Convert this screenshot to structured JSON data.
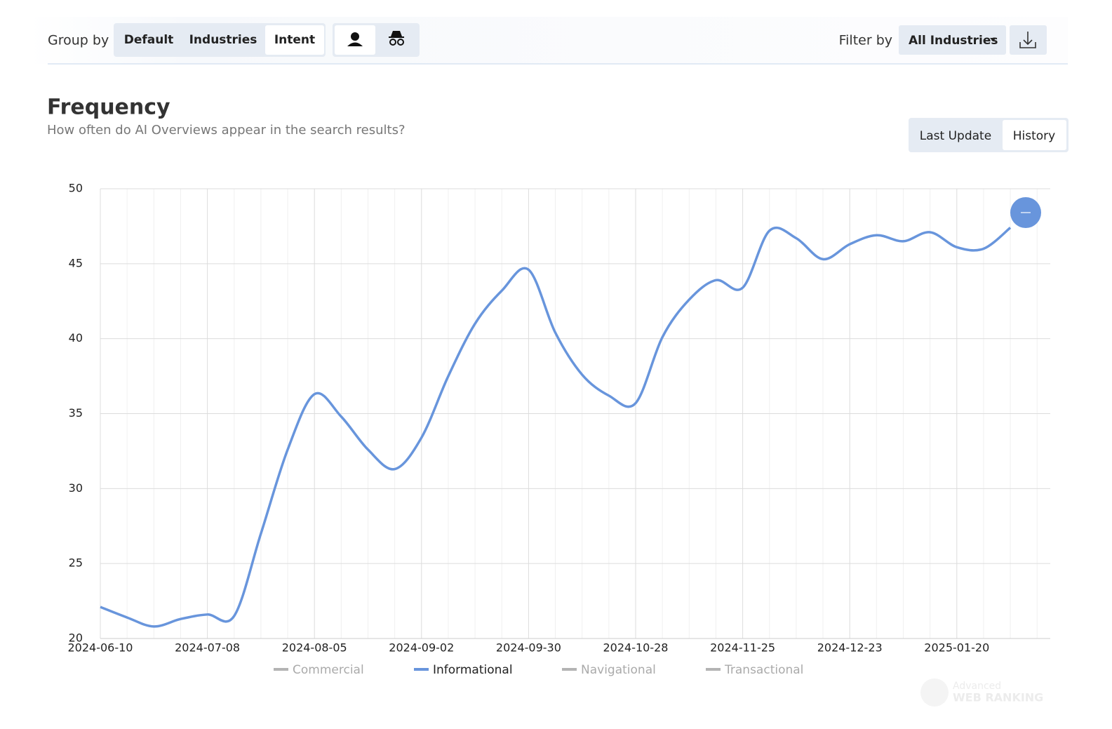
{
  "toolbar": {
    "group_label": "Group by",
    "group_options": [
      "Default",
      "Industries",
      "Intent"
    ],
    "filter_label": "Filter by",
    "filter_value": "All Industries"
  },
  "section": {
    "title": "Frequency",
    "subtitle": "How often do AI Overviews appear in the search results?",
    "view_options": [
      "Last Update",
      "History"
    ]
  },
  "chart_data": {
    "type": "line",
    "categories": [
      "2024-06-10",
      null,
      null,
      null,
      "2024-07-08",
      null,
      null,
      null,
      "2024-08-05",
      null,
      null,
      null,
      "2024-09-02",
      null,
      null,
      null,
      "2024-09-30",
      null,
      null,
      null,
      "2024-10-28",
      null,
      null,
      null,
      "2024-11-25",
      null,
      null,
      null,
      "2024-12-23",
      null,
      null,
      null,
      "2025-01-20",
      null,
      null
    ],
    "series": [
      {
        "name": "Commercial",
        "color": "#b4b4b4",
        "hidden": true
      },
      {
        "name": "Informational",
        "color": "#6895dc",
        "values": [
          22.1,
          21.4,
          20.8,
          21.3,
          21.6,
          21.5,
          27.0,
          32.6,
          36.3,
          34.8,
          32.6,
          31.3,
          33.4,
          37.5,
          41.0,
          43.2,
          44.6,
          40.4,
          37.6,
          36.2,
          35.7,
          40.1,
          42.6,
          43.9,
          43.4,
          47.2,
          46.7,
          45.3,
          46.3,
          46.9,
          46.5,
          47.1,
          46.1,
          46.0,
          47.4
        ]
      },
      {
        "name": "Navigational",
        "color": "#b4b4b4",
        "hidden": true
      },
      {
        "name": "Transactional",
        "color": "#b4b4b4",
        "hidden": true
      }
    ],
    "ylim": [
      20,
      50
    ],
    "yticks": [
      20,
      25,
      30,
      35,
      40,
      45,
      50
    ],
    "grid": true,
    "smooth": true
  },
  "watermark": {
    "line1": "Advanced",
    "line2": "WEB RANKING"
  }
}
